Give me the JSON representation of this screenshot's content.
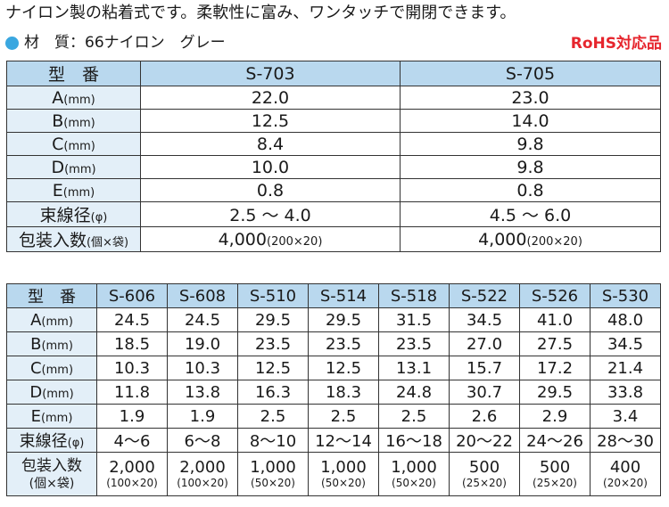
{
  "intro": "ナイロン製の粘着式です。柔軟性に富み、ワンタッチで開閉できます。",
  "material": "材　質：66ナイロン　グレー",
  "rohs": "RoHS対応品",
  "table1": {
    "header_label": "型　番",
    "columns": [
      "S-703",
      "S-705"
    ],
    "rows": [
      {
        "label": "A",
        "unit": "(mm)",
        "values": [
          "22.0",
          "23.0"
        ]
      },
      {
        "label": "B",
        "unit": "(mm)",
        "values": [
          "12.5",
          "14.0"
        ]
      },
      {
        "label": "C",
        "unit": "(mm)",
        "values": [
          "8.4",
          "9.8"
        ]
      },
      {
        "label": "D",
        "unit": "(mm)",
        "values": [
          "10.0",
          "9.8"
        ]
      },
      {
        "label": "E",
        "unit": "(mm)",
        "values": [
          "0.8",
          "0.8"
        ]
      },
      {
        "label": "束線径",
        "unit": "(φ)",
        "values": [
          "2.5 ～ 4.0",
          "4.5 ～ 6.0"
        ]
      },
      {
        "label": "包装入数",
        "unit": "(個×袋)",
        "values": [
          "4,000",
          "4,000"
        ],
        "sub": [
          "(200×20)",
          "(200×20)"
        ]
      }
    ]
  },
  "table2": {
    "header_label": "型　番",
    "columns": [
      "S-606",
      "S-608",
      "S-510",
      "S-514",
      "S-518",
      "S-522",
      "S-526",
      "S-530"
    ],
    "rows": [
      {
        "label": "A",
        "unit": "(mm)",
        "values": [
          "24.5",
          "24.5",
          "29.5",
          "29.5",
          "31.5",
          "34.5",
          "41.0",
          "48.0"
        ]
      },
      {
        "label": "B",
        "unit": "(mm)",
        "values": [
          "18.5",
          "19.0",
          "23.5",
          "23.5",
          "23.5",
          "27.0",
          "27.5",
          "34.5"
        ]
      },
      {
        "label": "C",
        "unit": "(mm)",
        "values": [
          "10.3",
          "10.3",
          "12.5",
          "12.5",
          "13.1",
          "15.7",
          "17.2",
          "21.4"
        ]
      },
      {
        "label": "D",
        "unit": "(mm)",
        "values": [
          "11.8",
          "13.8",
          "16.3",
          "18.3",
          "24.8",
          "30.7",
          "29.5",
          "33.8"
        ]
      },
      {
        "label": "E",
        "unit": "(mm)",
        "values": [
          "1.9",
          "1.9",
          "2.5",
          "2.5",
          "2.5",
          "2.6",
          "2.9",
          "3.4"
        ]
      },
      {
        "label": "束線径",
        "unit": "(φ)",
        "values": [
          "4～6",
          "6～8",
          "8～10",
          "12～14",
          "16～18",
          "20～22",
          "24～26",
          "28～30"
        ]
      }
    ],
    "pack": {
      "label": "包装入数",
      "unit": "(個×袋)",
      "values": [
        "2,000",
        "2,000",
        "1,000",
        "1,000",
        "1,000",
        "500",
        "500",
        "400"
      ],
      "sub": [
        "(100×20)",
        "(100×20)",
        "(50×20)",
        "(50×20)",
        "(50×20)",
        "(25×20)",
        "(25×20)",
        "(20×20)"
      ]
    }
  }
}
